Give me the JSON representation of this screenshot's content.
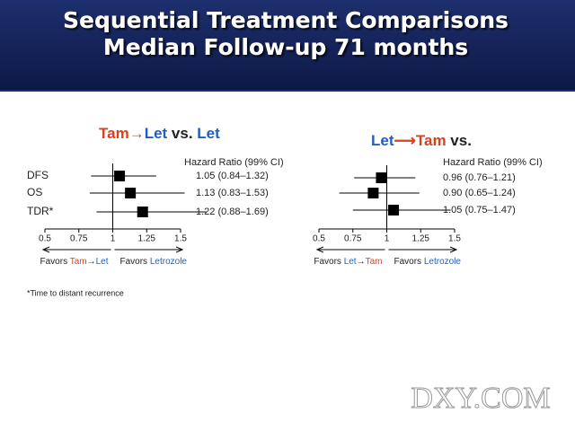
{
  "header": {
    "title_lines": [
      "Sequential Treatment Comparisons",
      "Median Follow-up 71 months"
    ]
  },
  "footnote": "*Time to distant recurrence",
  "watermark": "DXY.COM",
  "chart_data": [
    {
      "type": "forest",
      "title": [
        {
          "text": "Tam",
          "color": "#d9401f"
        },
        {
          "text": "→",
          "color": "#d9401f"
        },
        {
          "text": "Let",
          "color": "#1f5fc0"
        },
        {
          "text": " vs. ",
          "color": "#222222"
        },
        {
          "text": "Let",
          "color": "#1f5fc0"
        }
      ],
      "value_header": "Hazard Ratio (99% CI)",
      "categories": [
        "DFS",
        "OS",
        "TDR*"
      ],
      "values": [
        1.05,
        1.13,
        1.22
      ],
      "lower": [
        0.84,
        0.83,
        0.88
      ],
      "upper": [
        1.32,
        1.53,
        1.69
      ],
      "value_labels": [
        "1.05 (0.84–1.32)",
        "1.13 (0.83–1.53)",
        "1.22 (0.88–1.69)"
      ],
      "xlim": [
        0.5,
        1.5
      ],
      "xticks": [
        0.5,
        0.75,
        1,
        1.25,
        1.5
      ],
      "reference": 1,
      "favors_left": [
        {
          "text": "Favors ",
          "color": "#222222"
        },
        {
          "text": "Tam",
          "color": "#d9401f"
        },
        {
          "text": "→",
          "color": "#222222"
        },
        {
          "text": "Let",
          "color": "#1f5fc0"
        }
      ],
      "favors_right": [
        {
          "text": "Favors ",
          "color": "#222222"
        },
        {
          "text": "Letrozole",
          "color": "#1f5fc0"
        }
      ],
      "color": "#000000"
    },
    {
      "type": "forest",
      "title": [
        {
          "text": "Let",
          "color": "#1f5fc0"
        },
        {
          "text": "⟶",
          "color": "#d9401f"
        },
        {
          "text": "Tam",
          "color": "#d9401f"
        },
        {
          "text": " vs.",
          "color": "#222222"
        }
      ],
      "value_header": "Hazard Ratio (99% CI)",
      "categories": [
        null,
        null,
        null
      ],
      "values": [
        0.96,
        0.9,
        1.05
      ],
      "lower": [
        0.76,
        0.65,
        0.75
      ],
      "upper": [
        1.21,
        1.24,
        1.47
      ],
      "value_labels": [
        "0.96 (0.76–1.21)",
        "0.90 (0.65–1.24)",
        "1.05 (0.75–1.47)"
      ],
      "xlim": [
        0.5,
        1.5
      ],
      "xticks": [
        0.5,
        0.75,
        1,
        1.25,
        1.5
      ],
      "reference": 1,
      "favors_left": [
        {
          "text": "Favors ",
          "color": "#222222"
        },
        {
          "text": "Let",
          "color": "#1f5fc0"
        },
        {
          "text": "→",
          "color": "#222222"
        },
        {
          "text": "Tam",
          "color": "#d9401f"
        }
      ],
      "favors_right": [
        {
          "text": "Favors ",
          "color": "#222222"
        },
        {
          "text": "Letrozole",
          "color": "#1f5fc0"
        }
      ],
      "color": "#000000"
    }
  ]
}
